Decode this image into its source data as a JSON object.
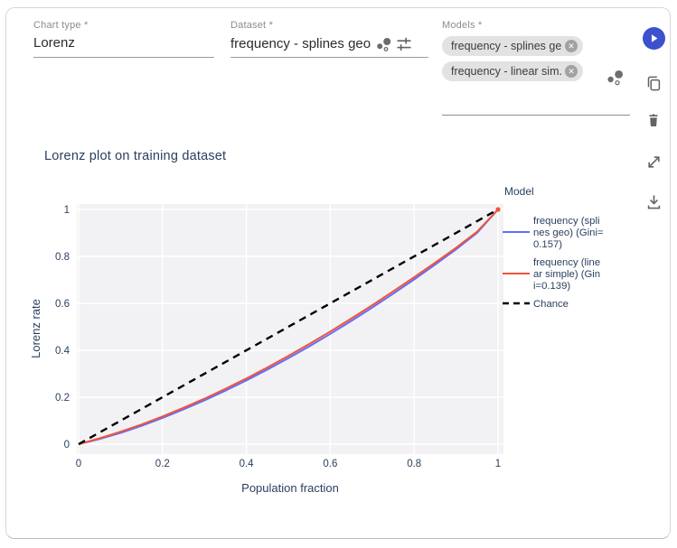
{
  "fields": {
    "chart_type": {
      "label": "Chart type *",
      "value": "Lorenz"
    },
    "dataset": {
      "label": "Dataset *",
      "value": "frequency - splines geo"
    },
    "models": {
      "label": "Models *",
      "chips": [
        {
          "label": "frequency - splines geo"
        },
        {
          "label": "frequency - linear sim..."
        }
      ]
    }
  },
  "toolbar": {
    "buttons": [
      "run",
      "copy",
      "delete",
      "expand",
      "download"
    ]
  },
  "colors": {
    "accent_run": "#3B51CE",
    "icon_gray": "#5f6368",
    "series_blue": "#636EFA",
    "series_red": "#EF553B",
    "chance_black": "#000000",
    "plot_bg": "#F2F2F4",
    "grid": "#FFFFFF",
    "axis_text": "#2A3F5F"
  },
  "chart_data": {
    "type": "line",
    "title": "Lorenz plot on training dataset",
    "xlabel": "Population fraction",
    "ylabel": "Lorenz rate",
    "xlim": [
      0,
      1
    ],
    "ylim": [
      0,
      1
    ],
    "xticks": [
      "0",
      "0.2",
      "0.4",
      "0.6",
      "0.8",
      "1"
    ],
    "yticks": [
      "0",
      "0.2",
      "0.4",
      "0.6",
      "0.8",
      "1"
    ],
    "tick_values": [
      0,
      0.2,
      0.4,
      0.6,
      0.8,
      1
    ],
    "grid": true,
    "legend_position": "right",
    "legend_title": "Model",
    "x": [
      0,
      0.05,
      0.1,
      0.15,
      0.2,
      0.25,
      0.3,
      0.35,
      0.4,
      0.45,
      0.5,
      0.55,
      0.6,
      0.65,
      0.7,
      0.75,
      0.8,
      0.85,
      0.9,
      0.95,
      1
    ],
    "series": [
      {
        "name": "frequency (splines geo) (Gini=0.157)",
        "legend_lines": [
          "frequency (spli",
          "nes geo) (Gini=",
          "0.157)"
        ],
        "color": "#636EFA",
        "dash": "",
        "end_marker": false,
        "y": [
          0,
          0.022,
          0.048,
          0.078,
          0.112,
          0.148,
          0.187,
          0.228,
          0.272,
          0.318,
          0.366,
          0.417,
          0.47,
          0.525,
          0.582,
          0.641,
          0.702,
          0.765,
          0.83,
          0.9,
          1
        ]
      },
      {
        "name": "frequency (linear simple) (Gini=0.139)",
        "legend_lines": [
          "frequency (line",
          "ar simple) (Gin",
          "i=0.139)"
        ],
        "color": "#EF553B",
        "dash": "",
        "end_marker": true,
        "y": [
          0,
          0.025,
          0.053,
          0.084,
          0.118,
          0.155,
          0.194,
          0.236,
          0.28,
          0.327,
          0.376,
          0.427,
          0.48,
          0.535,
          0.592,
          0.651,
          0.711,
          0.773,
          0.837,
          0.905,
          1
        ]
      },
      {
        "name": "Chance",
        "legend_lines": [
          "Chance"
        ],
        "color": "#000000",
        "dash": "8,6",
        "end_marker": false,
        "x_override": [
          0,
          1
        ],
        "y": [
          0,
          1
        ]
      }
    ]
  }
}
